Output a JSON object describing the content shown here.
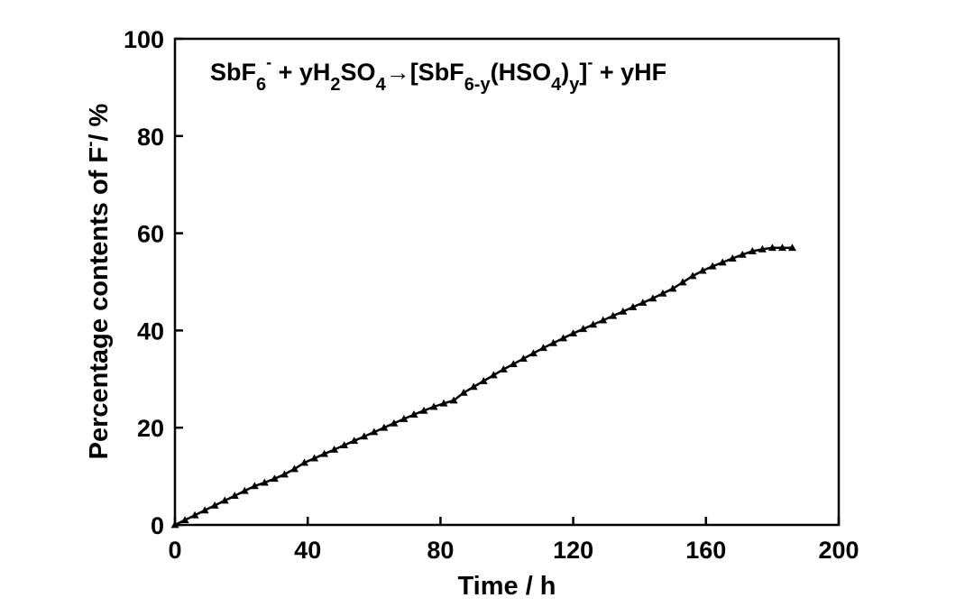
{
  "chart_data": {
    "type": "line",
    "title": "",
    "xlabel": "Time / h",
    "ylabel_parts": [
      "Percentage contents of F",
      "-",
      "/ %"
    ],
    "xlim": [
      0,
      200
    ],
    "ylim": [
      0,
      100
    ],
    "xticks": [
      0,
      40,
      80,
      120,
      160,
      200
    ],
    "yticks": [
      0,
      20,
      40,
      60,
      80,
      100
    ],
    "grid": false,
    "legend": "none",
    "annotation": "SbF6- + yH2SO4→[SbF6-y(HSO4)y]- + yHF",
    "series": [
      {
        "marker": "triangle",
        "color": "#000000",
        "x": [
          0,
          3,
          6,
          9,
          12,
          15,
          18,
          21,
          24,
          27,
          30,
          33,
          36,
          39,
          42,
          45,
          48,
          51,
          54,
          57,
          60,
          63,
          66,
          69,
          72,
          75,
          78,
          81,
          84,
          87,
          90,
          93,
          96,
          99,
          102,
          105,
          108,
          111,
          114,
          117,
          120,
          123,
          126,
          129,
          132,
          135,
          138,
          141,
          144,
          147,
          150,
          153,
          156,
          159,
          162,
          165,
          168,
          171,
          174,
          177,
          180,
          183,
          186
        ],
        "y": [
          0,
          1.0,
          2.0,
          3.0,
          4.0,
          5.0,
          6.0,
          7.0,
          8.0,
          8.7,
          9.5,
          10.4,
          11.5,
          12.8,
          13.7,
          14.6,
          15.5,
          16.4,
          17.3,
          18.2,
          19.1,
          20.0,
          20.9,
          21.8,
          22.7,
          23.5,
          24.3,
          25.0,
          25.6,
          27.2,
          28.4,
          29.6,
          30.8,
          32.0,
          33.1,
          34.2,
          35.3,
          36.4,
          37.4,
          38.4,
          39.4,
          40.3,
          41.2,
          42.1,
          43.0,
          43.9,
          44.8,
          45.7,
          46.6,
          47.6,
          48.6,
          49.9,
          51.2,
          52.3,
          53.2,
          54.0,
          54.8,
          55.6,
          56.3,
          56.7,
          57.0,
          57.0,
          57.0
        ]
      }
    ]
  }
}
